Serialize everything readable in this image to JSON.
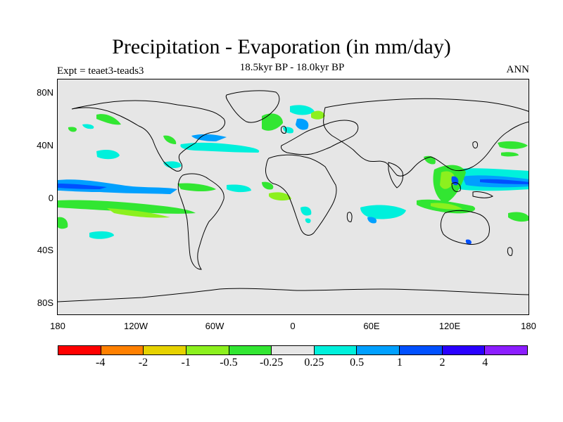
{
  "header": {
    "title": "Precipitation - Evaporation (in mm/day)",
    "subtitle": "18.5kyr BP - 18.0kyr BP",
    "experiment": "Expt = teaet3-teads3",
    "season": "ANN"
  },
  "axes": {
    "y_ticks": [
      "80N",
      "40N",
      "0",
      "40S",
      "80S"
    ],
    "x_ticks": [
      "180",
      "120W",
      "60W",
      "0",
      "60E",
      "120E",
      "180"
    ]
  },
  "colorbar": {
    "colors": [
      "#ff0000",
      "#ff8000",
      "#e6d200",
      "#8cf01e",
      "#32e632",
      "#e6e6e6",
      "#00f0dc",
      "#00a0ff",
      "#0050ff",
      "#2a00ff",
      "#8c1eff"
    ],
    "labels": [
      "-4",
      "-2",
      "-1",
      "-0.5",
      "-0.25",
      "0.25",
      "0.5",
      "1",
      "2",
      "4"
    ]
  },
  "map_colors": {
    "ocean_background": "#e6e6e6",
    "coast": "#000000"
  }
}
